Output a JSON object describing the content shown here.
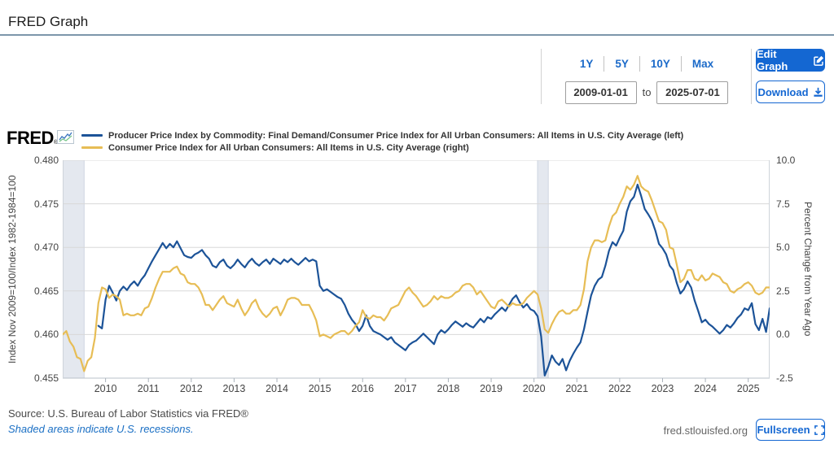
{
  "page": {
    "title": "FRED Graph"
  },
  "toolbar": {
    "ranges": [
      "1Y",
      "5Y",
      "10Y",
      "Max"
    ],
    "date_start": "2009-01-01",
    "to_label": "to",
    "date_end": "2025-07-01",
    "edit_graph_label": "Edit Graph",
    "download_label": "Download"
  },
  "branding": {
    "logo": "FRED",
    "registered": "®"
  },
  "footer": {
    "source": "Source: U.S. Bureau of Labor Statistics via FRED®",
    "recession_note": "Shaded areas indicate U.S. recessions.",
    "site": "fred.stlouisfed.org",
    "fullscreen_label": "Fullscreen"
  },
  "chart_data": {
    "type": "line",
    "title": "FRED Graph",
    "grid": true,
    "legend_position": "top",
    "colors": {
      "series1": "#1c5398",
      "series2": "#e7bd55",
      "recession_band": "#e4e8ef",
      "recession_band_edge": "#cfd6e2",
      "gridline": "#d8d8d8",
      "plot_border": "#cfd4da",
      "axis_line": "#b9c0c9"
    },
    "left_axis": {
      "title": "Index Nov 2009=100/Index 1982-1984=100",
      "tick_labels": [
        "0.480",
        "0.475",
        "0.470",
        "0.465",
        "0.460",
        "0.455"
      ],
      "range": [
        0.455,
        0.48
      ]
    },
    "right_axis": {
      "title": "Percent Change from Year Ago",
      "tick_labels": [
        "10.0",
        "7.5",
        "5.0",
        "2.5",
        "0.0",
        "-2.5"
      ],
      "range": [
        -2.5,
        10.0
      ]
    },
    "x_axis": {
      "start": "2009-01",
      "end": "2025-07",
      "year_labels": [
        "2010",
        "2011",
        "2012",
        "2013",
        "2014",
        "2015",
        "2016",
        "2017",
        "2018",
        "2019",
        "2020",
        "2021",
        "2022",
        "2023",
        "2024",
        "2025"
      ]
    },
    "recessions": [
      {
        "start": "2009-01",
        "end": "2009-06"
      },
      {
        "start": "2020-02",
        "end": "2020-04"
      }
    ],
    "series": [
      {
        "name": "Producer Price Index by Commodity: Final Demand/Consumer Price Index for All Urban Consumers: All Items in U.S. City Average (left)",
        "axis": "left",
        "color": "#1c5398",
        "start": "2009-11",
        "values": [
          0.461,
          0.4607,
          0.464,
          0.4656,
          0.4648,
          0.4639,
          0.465,
          0.4655,
          0.4651,
          0.4657,
          0.4661,
          0.4656,
          0.4663,
          0.4668,
          0.4676,
          0.4684,
          0.4691,
          0.4698,
          0.4705,
          0.4699,
          0.4704,
          0.47,
          0.4707,
          0.4699,
          0.4691,
          0.4689,
          0.4688,
          0.4692,
          0.4694,
          0.4697,
          0.4691,
          0.4687,
          0.4679,
          0.4677,
          0.4683,
          0.4686,
          0.4679,
          0.4676,
          0.468,
          0.4686,
          0.4681,
          0.4677,
          0.4683,
          0.4687,
          0.4682,
          0.4679,
          0.4683,
          0.4686,
          0.4681,
          0.4687,
          0.4684,
          0.4681,
          0.4686,
          0.4683,
          0.4687,
          0.4683,
          0.468,
          0.4684,
          0.4688,
          0.4684,
          0.4686,
          0.4684,
          0.4656,
          0.465,
          0.4652,
          0.4649,
          0.4646,
          0.4643,
          0.4641,
          0.4634,
          0.4624,
          0.4617,
          0.4612,
          0.4604,
          0.461,
          0.4622,
          0.461,
          0.4604,
          0.4602,
          0.46,
          0.4597,
          0.4594,
          0.4597,
          0.4591,
          0.4588,
          0.4585,
          0.4582,
          0.4588,
          0.4591,
          0.4593,
          0.4597,
          0.4601,
          0.4597,
          0.4593,
          0.4589,
          0.46,
          0.4605,
          0.4602,
          0.4606,
          0.4611,
          0.4615,
          0.4612,
          0.4609,
          0.4613,
          0.461,
          0.4608,
          0.4613,
          0.4618,
          0.4614,
          0.462,
          0.4618,
          0.4623,
          0.4627,
          0.4631,
          0.4627,
          0.4634,
          0.4641,
          0.4645,
          0.4637,
          0.4631,
          0.4635,
          0.4629,
          0.4627,
          0.4621,
          0.4598,
          0.4553,
          0.4563,
          0.4576,
          0.4569,
          0.4565,
          0.4572,
          0.4559,
          0.457,
          0.4578,
          0.4585,
          0.4591,
          0.4606,
          0.4626,
          0.4645,
          0.4656,
          0.4663,
          0.4666,
          0.4679,
          0.4696,
          0.4706,
          0.4702,
          0.4711,
          0.4719,
          0.4741,
          0.4753,
          0.4758,
          0.4772,
          0.4759,
          0.4744,
          0.4738,
          0.4731,
          0.4719,
          0.4704,
          0.4699,
          0.4692,
          0.4679,
          0.4674,
          0.4659,
          0.4647,
          0.4652,
          0.4661,
          0.4654,
          0.4639,
          0.4627,
          0.4614,
          0.4617,
          0.4612,
          0.4609,
          0.4605,
          0.4601,
          0.4605,
          0.4611,
          0.4608,
          0.4613,
          0.4619,
          0.4623,
          0.463,
          0.4628,
          0.4636,
          0.4612,
          0.4605,
          0.4618,
          0.4603,
          0.463
        ]
      },
      {
        "name": "Consumer Price Index for All Urban Consumers: All Items in U.S. City Average (right)",
        "axis": "right",
        "color": "#e7bd55",
        "start": "2009-01",
        "values": [
          0.0,
          0.2,
          -0.4,
          -0.7,
          -1.3,
          -1.4,
          -2.1,
          -1.5,
          -1.3,
          -0.2,
          1.8,
          2.7,
          2.6,
          2.1,
          2.3,
          2.2,
          2.0,
          1.1,
          1.2,
          1.1,
          1.1,
          1.2,
          1.1,
          1.5,
          1.6,
          2.1,
          2.7,
          3.2,
          3.6,
          3.6,
          3.6,
          3.8,
          3.9,
          3.5,
          3.4,
          3.0,
          2.9,
          2.9,
          2.7,
          2.3,
          1.7,
          1.7,
          1.4,
          1.7,
          2.0,
          2.2,
          1.8,
          1.7,
          1.6,
          2.0,
          1.5,
          1.1,
          1.4,
          1.8,
          2.0,
          1.5,
          1.2,
          1.0,
          1.2,
          1.5,
          1.6,
          1.1,
          1.5,
          2.0,
          2.1,
          2.1,
          2.0,
          1.7,
          1.7,
          1.7,
          1.3,
          0.8,
          -0.1,
          0.0,
          -0.1,
          -0.2,
          0.0,
          0.1,
          0.2,
          0.2,
          0.0,
          0.2,
          0.5,
          0.7,
          1.4,
          1.0,
          0.9,
          1.1,
          1.0,
          1.0,
          0.8,
          1.1,
          1.5,
          1.6,
          1.7,
          2.1,
          2.5,
          2.7,
          2.4,
          2.2,
          1.9,
          1.6,
          1.7,
          1.9,
          2.2,
          2.0,
          2.2,
          2.1,
          2.1,
          2.2,
          2.4,
          2.5,
          2.8,
          2.9,
          2.9,
          2.7,
          2.3,
          2.5,
          2.2,
          1.9,
          1.6,
          1.5,
          1.9,
          2.0,
          1.8,
          1.6,
          1.8,
          1.7,
          1.7,
          1.8,
          2.1,
          2.3,
          2.5,
          2.3,
          1.5,
          0.3,
          0.1,
          0.6,
          1.0,
          1.3,
          1.4,
          1.2,
          1.2,
          1.4,
          1.4,
          1.7,
          2.6,
          4.2,
          5.0,
          5.4,
          5.4,
          5.3,
          5.4,
          6.2,
          6.8,
          7.0,
          7.5,
          7.9,
          8.5,
          8.3,
          8.6,
          9.1,
          8.5,
          8.3,
          8.2,
          7.7,
          7.1,
          6.5,
          6.4,
          6.0,
          5.0,
          4.9,
          4.0,
          3.0,
          3.2,
          3.7,
          3.7,
          3.2,
          3.1,
          3.4,
          3.1,
          3.2,
          3.5,
          3.4,
          3.3,
          3.0,
          2.9,
          2.5,
          2.4,
          2.6,
          2.7,
          2.9,
          3.0,
          2.8,
          2.4,
          2.3,
          2.4,
          2.7,
          2.7
        ]
      }
    ]
  }
}
